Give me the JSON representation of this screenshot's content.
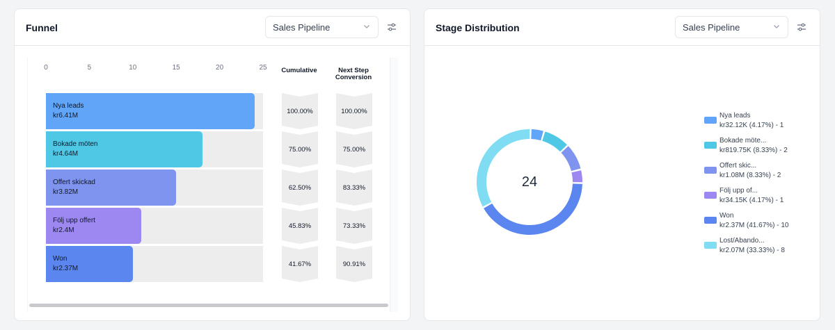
{
  "funnel": {
    "title": "Funnel",
    "pipeline": "Sales Pipeline",
    "axis_ticks": [
      "0",
      "5",
      "10",
      "15",
      "20",
      "25"
    ],
    "col_cumulative": "Cumulative",
    "col_next_line1": "Next Step",
    "col_next_line2": "Conversion"
  },
  "distribution": {
    "title": "Stage Distribution",
    "pipeline": "Sales Pipeline",
    "total": "24"
  },
  "colors": {
    "nya": "#60a5f7",
    "bokade": "#4fc8e6",
    "offert": "#7f94ee",
    "folj": "#9d87f1",
    "won": "#5b86f0",
    "lost": "#7fdcf3"
  },
  "chart_data": [
    {
      "type": "bar",
      "orientation": "horizontal",
      "xlim": [
        0,
        25
      ],
      "categories": [
        "Nya leads",
        "Bokade möten",
        "Offert skickad",
        "Följ upp offert",
        "Won"
      ],
      "values": [
        24,
        18,
        15,
        11,
        10
      ],
      "value_labels": [
        "kr6.41M",
        "kr4.64M",
        "kr3.82M",
        "kr2.4M",
        "kr2.37M"
      ],
      "cumulative": [
        "100.00%",
        "75.00%",
        "62.50%",
        "45.83%",
        "41.67%"
      ],
      "next_step_conversion": [
        "100.00%",
        "75.00%",
        "83.33%",
        "73.33%",
        "90.91%"
      ]
    },
    {
      "type": "pie",
      "total_label": "24",
      "slices": [
        {
          "label": "Nya leads",
          "detail": "kr32.12K (4.17%) - 1",
          "value": 1
        },
        {
          "label": "Bokade möte...",
          "detail": "kr819.75K (8.33%) - 2",
          "value": 2
        },
        {
          "label": "Offert skic...",
          "detail": "kr1.08M (8.33%) - 2",
          "value": 2
        },
        {
          "label": "Följ upp of...",
          "detail": "kr34.15K (4.17%) - 1",
          "value": 1
        },
        {
          "label": "Won",
          "detail": "kr2.37M (41.67%) - 10",
          "value": 10
        },
        {
          "label": "Lost/Abando...",
          "detail": "kr2.07M (33.33%) - 8",
          "value": 8
        }
      ]
    }
  ]
}
